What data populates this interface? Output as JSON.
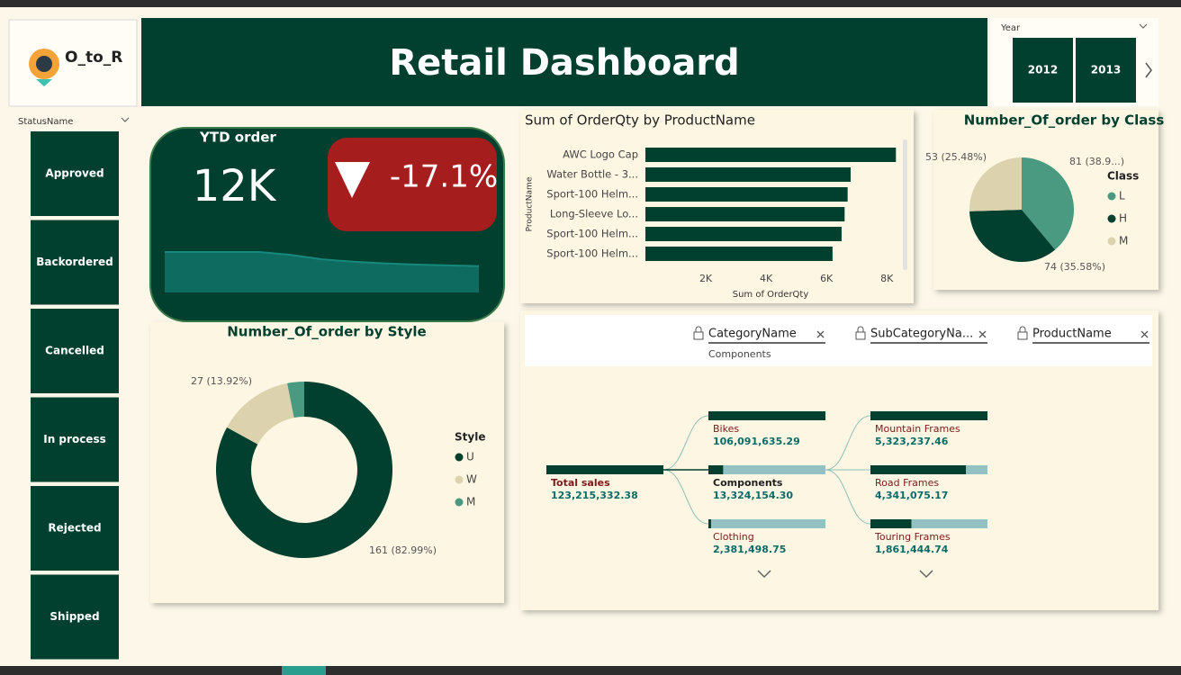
{
  "header": {
    "logo_text": "O_to_R",
    "title": "Retail Dashboard"
  },
  "year_slicer": {
    "label": "Year",
    "options": [
      "2012",
      "2013"
    ]
  },
  "status_slicer": {
    "label": "StatusName",
    "options": [
      "Approved",
      "Backordered",
      "Cancelled",
      "In process",
      "Rejected",
      "Shipped"
    ]
  },
  "kpi": {
    "title": "YTD order",
    "value": "12K",
    "change": "-17.1%"
  },
  "chart_data": [
    {
      "type": "area",
      "values": [
        100,
        100,
        100,
        100,
        93,
        82,
        76,
        72,
        69,
        67,
        65
      ],
      "color": "#0e6b60"
    },
    {
      "type": "bar",
      "orientation": "horizontal",
      "title": "Sum of OrderQty by ProductName",
      "x_label": "Sum of OrderQty",
      "y_label": "ProductName",
      "categories": [
        "AWC Logo Cap",
        "Water Bottle - 3...",
        "Sport-100 Helm...",
        "Long-Sleeve Lo...",
        "Sport-100 Helm...",
        "Sport-100 Helm..."
      ],
      "values": [
        8300,
        6800,
        6700,
        6600,
        6500,
        6200
      ],
      "color": "#013f2e",
      "xlim": [
        0,
        8500
      ],
      "xticks": [
        {
          "value": 2000,
          "label": "2K"
        },
        {
          "value": 4000,
          "label": "4K"
        },
        {
          "value": 6000,
          "label": "6K"
        },
        {
          "value": 8000,
          "label": "8K"
        }
      ]
    },
    {
      "type": "pie",
      "title": "Number_Of_order by Class",
      "legend_title": "Class",
      "categories": [
        "L",
        "H",
        "M"
      ],
      "values": [
        81,
        74,
        53
      ],
      "value_labels": [
        "81 (38.9...)",
        "74 (35.58%)",
        "53 (25.48%)"
      ],
      "colors": [
        "#4a9a82",
        "#013f2e",
        "#dcd2ae"
      ]
    },
    {
      "type": "donut",
      "title": "Number_Of_order by Style",
      "legend_title": "Style",
      "categories": [
        "U",
        "W",
        "M"
      ],
      "values": [
        161,
        27,
        6
      ],
      "value_labels": [
        "161 (82.99%)",
        "27 (13.92%)",
        null
      ],
      "colors": [
        "#013f2e",
        "#dcd2ae",
        "#4a9a82"
      ]
    },
    {
      "type": "decomposition_tree",
      "filters": [
        {
          "label": "CategoryName",
          "value": "Components"
        },
        {
          "label": "SubCategoryNa..."
        },
        {
          "label": "ProductName"
        }
      ],
      "root": {
        "name": "Total sales",
        "value": 123215332.38,
        "value_label": "123,215,332.38"
      },
      "levels": [
        {
          "categories": [
            "Bikes",
            "Components",
            "Clothing"
          ],
          "values": [
            106091635.29,
            13324154.3,
            2381498.75
          ],
          "value_labels": [
            "106,091,635.29",
            "13,324,154.30",
            "2,381,498.75"
          ]
        },
        {
          "categories": [
            "Mountain Frames",
            "Road Frames",
            "Touring Frames"
          ],
          "values": [
            5323237.46,
            4341075.17,
            1861444.74
          ],
          "value_labels": [
            "5,323,237.46",
            "4,341,075.17",
            "1,861,444.74"
          ]
        }
      ]
    }
  ]
}
